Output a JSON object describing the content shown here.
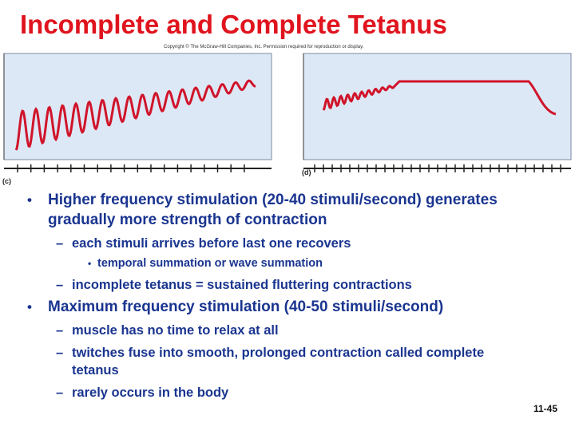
{
  "title": "Incomplete and Complete Tetanus",
  "copyright": "Copyright © The McGraw-Hill Companies, Inc. Permission required for reproduction or display.",
  "figure": {
    "panels": [
      {
        "label": "(c)"
      },
      {
        "label": "(d)"
      }
    ]
  },
  "bullets": [
    {
      "text": "Higher frequency stimulation (20-40 stimuli/second) generates gradually more strength of contraction",
      "items": [
        {
          "text": "each stimuli arrives before last one recovers",
          "items": [
            {
              "text": "temporal summation or wave summation"
            }
          ]
        },
        {
          "text": "incomplete tetanus = sustained fluttering contractions"
        }
      ]
    },
    {
      "text": "Maximum frequency stimulation (40-50 stimuli/second)",
      "items": [
        {
          "text": "muscle has no time to relax at all"
        },
        {
          "text": "twitches fuse into smooth, prolonged contraction called complete tetanus"
        },
        {
          "text": "rarely occurs in the body"
        }
      ]
    }
  ],
  "slide_number": "11-45"
}
